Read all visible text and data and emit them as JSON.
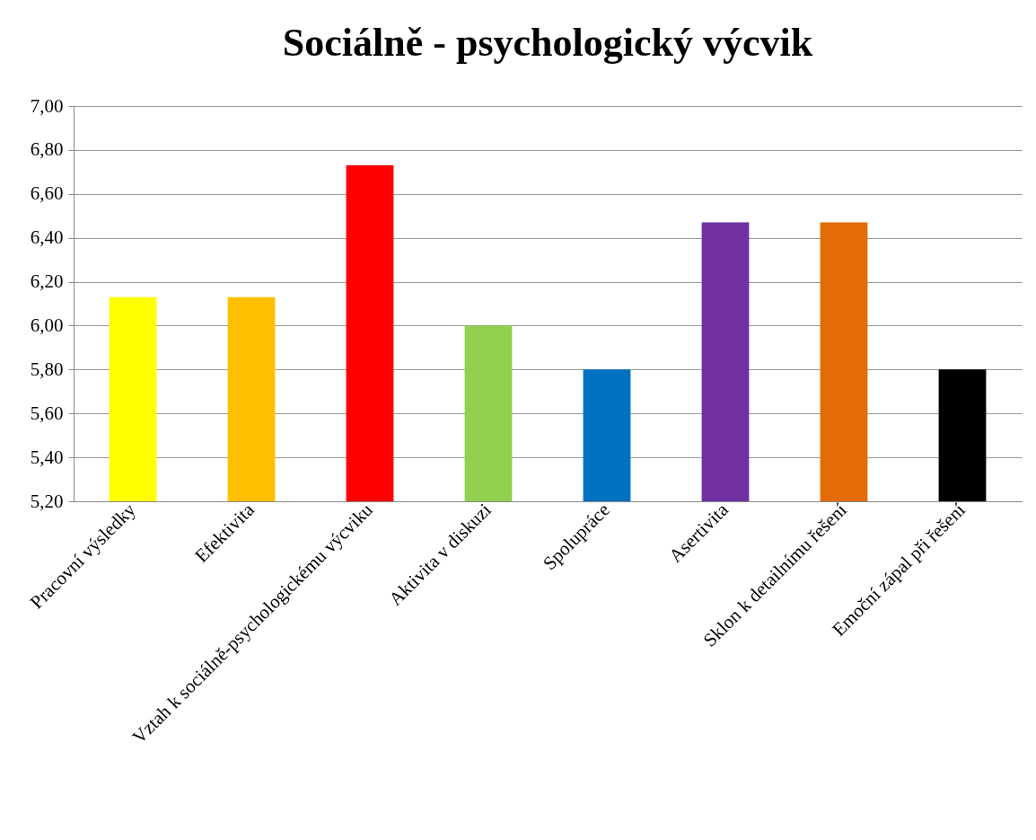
{
  "chart_data": {
    "type": "bar",
    "title": "Sociálně - psychologický výcvik",
    "categories": [
      "Pracovní výsledky",
      "Efektivita",
      "Vztah k sociálně-psychologickému výcviku",
      "Aktivita v diskuzi",
      "Spolupráce",
      "Asertivita",
      "Sklon k detailnímu řešení",
      "Emoční zápal při řešení"
    ],
    "values": [
      6.13,
      6.13,
      6.73,
      6.0,
      5.8,
      6.47,
      6.47,
      5.8
    ],
    "colors": [
      "#ffff00",
      "#ffc000",
      "#ff0000",
      "#92d050",
      "#0070c0",
      "#7030a0",
      "#e36c09",
      "#000000"
    ],
    "ylim": [
      5.2,
      7.0
    ],
    "yticks": [
      {
        "value": 5.2,
        "label": "5,20"
      },
      {
        "value": 5.4,
        "label": "5,40"
      },
      {
        "value": 5.6,
        "label": "5,60"
      },
      {
        "value": 5.8,
        "label": "5,80"
      },
      {
        "value": 6.0,
        "label": "6,00"
      },
      {
        "value": 6.2,
        "label": "6,20"
      },
      {
        "value": 6.4,
        "label": "6,40"
      },
      {
        "value": 6.6,
        "label": "6,60"
      },
      {
        "value": 6.8,
        "label": "6,80"
      },
      {
        "value": 7.0,
        "label": "7,00"
      }
    ],
    "grid": "y",
    "legend": false
  }
}
